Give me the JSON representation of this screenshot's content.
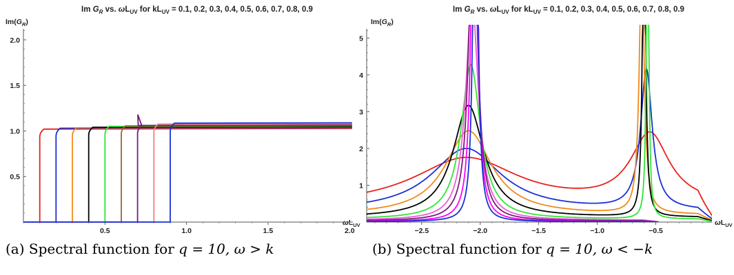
{
  "captions": {
    "a": {
      "prefix": "(a) Spectral function for ",
      "math": "q = 10, ω > k"
    },
    "b": {
      "prefix": "(b) Spectral function for ",
      "math": "q = 10, ω < −k"
    }
  },
  "chart_data": [
    {
      "id": "a",
      "type": "line",
      "title": "Im G_R vs. ωL_UV for kL_UV = 0.1, 0.2, 0.3, 0.4, 0.5, 0.6, 0.7, 0.8, 0.9",
      "title_parts": {
        "lead": "Im ",
        "g": "G",
        "sub": "R",
        "mid": " vs. ",
        "w": "ω",
        "l": "L",
        "uv": "UV",
        "rest": " for kL",
        "uv2": "UV",
        "tail": " = 0.1, 0.2, 0.3, 0.4, 0.5, 0.6, 0.7, 0.8, 0.9"
      },
      "ylabel": "Im(G_R)",
      "ylabel_parts": {
        "lead": "Im(",
        "g": "G",
        "sub": "R",
        "tail": ")"
      },
      "xlabel": "ωL_UV",
      "xlabel_parts": {
        "w": "ω",
        "l": "L",
        "sub": "UV"
      },
      "xlim": [
        0,
        2.02
      ],
      "ylim": [
        0,
        2.12
      ],
      "xticks": [
        0.5,
        1.0,
        1.5,
        2.0
      ],
      "xtick_labels": [
        "0.5",
        "1.0",
        "1.5",
        "2.0"
      ],
      "yticks": [
        0.5,
        1.0,
        1.5,
        2.0
      ],
      "ytick_labels": [
        "0.5",
        "1.0",
        "1.5",
        "2.0"
      ],
      "series": [
        {
          "k": 0.1,
          "color": "#e8211c",
          "plateau": 1.02
        },
        {
          "k": 0.2,
          "color": "#1a2fd6",
          "plateau": 1.03
        },
        {
          "k": 0.3,
          "color": "#f08a1a",
          "plateau": 1.035
        },
        {
          "k": 0.4,
          "color": "#000000",
          "plateau": 1.04
        },
        {
          "k": 0.5,
          "color": "#2ee636",
          "plateau": 1.05
        },
        {
          "k": 0.6,
          "color": "#a0622d",
          "plateau": 1.055
        },
        {
          "k": 0.7,
          "color": "#7a1a7a",
          "plateau": 1.06,
          "spike": 1.18
        },
        {
          "k": 0.8,
          "color": "#f08080",
          "plateau": 1.075
        },
        {
          "k": 0.9,
          "color": "#1a2fd6",
          "plateau": 1.085
        }
      ]
    },
    {
      "id": "b",
      "type": "line",
      "title": "Im G_R vs. ωL_UV for kL_UV = 0.1, 0.2, 0.3, 0.4, 0.5, 0.6, 0.7, 0.8, 0.9",
      "title_parts": {
        "lead": "Im ",
        "g": "G",
        "sub": "R",
        "mid": " vs. ",
        "w": "ω",
        "l": "L",
        "uv": "UV",
        "rest": " for kL",
        "uv2": "UV",
        "tail": " = 0.1, 0.2, 0.3, 0.4, 0.5, 0.6, 0.7, 0.8, 0.9"
      },
      "ylabel": "Im(G_R)",
      "ylabel_parts": {
        "lead": "Im(",
        "g": "G",
        "sub": "R",
        "tail": ")"
      },
      "xlabel": "ωL_UV",
      "xlabel_parts": {
        "w": "ω",
        "l": "L",
        "sub": "UV"
      },
      "xlim": [
        -2.97,
        -0.02
      ],
      "ylim": [
        0,
        5.25
      ],
      "xticks": [
        -2.5,
        -2.0,
        -1.5,
        -1.0,
        -0.5
      ],
      "xtick_labels": [
        "−2.5",
        "−2.0",
        "−1.5",
        "−1.0",
        "−0.5"
      ],
      "yticks": [
        1,
        2,
        3,
        4,
        5
      ],
      "ytick_labels": [
        "1",
        "2",
        "3",
        "4",
        "5"
      ],
      "series": [
        {
          "k": 0.1,
          "color": "#e8211c",
          "p1": [
            -2.12,
            1.32,
            0.55
          ],
          "p2": [
            -0.55,
            1.9,
            0.2
          ],
          "base": 0.68
        },
        {
          "k": 0.2,
          "color": "#1a2fd6",
          "p1": [
            -2.12,
            1.72,
            0.36
          ],
          "p2": [
            -0.58,
            3.8,
            0.06
          ],
          "base": 0.46
        },
        {
          "k": 0.3,
          "color": "#f08a1a",
          "p1": [
            -2.1,
            2.3,
            0.24
          ],
          "p2": [
            -0.62,
            7.0,
            0.025
          ],
          "base": 0.3
        },
        {
          "k": 0.4,
          "color": "#000000",
          "p1": [
            -2.1,
            3.05,
            0.16
          ],
          "p2": [
            -0.6,
            9.5,
            0.015
          ],
          "base": 0.2
        },
        {
          "k": 0.5,
          "color": "#2ee636",
          "p1": [
            -2.08,
            4.2,
            0.1
          ],
          "p2": [
            -0.57,
            12.0,
            0.01
          ],
          "base": 0.12
        },
        {
          "k": 0.6,
          "color": "#f05ad6",
          "p1": [
            -2.07,
            6.0,
            0.065
          ],
          "base": 0.08
        },
        {
          "k": 0.7,
          "color": "#7a1a7a",
          "p1": [
            -2.06,
            8.5,
            0.045
          ],
          "base": 0.05
        },
        {
          "k": 0.8,
          "color": "#ff00ff",
          "p1": [
            -2.05,
            11.0,
            0.03
          ],
          "base": 0.03
        },
        {
          "k": 0.9,
          "color": "#1a2fd6",
          "p1": [
            -2.04,
            14.0,
            0.02
          ],
          "base": 0.02
        }
      ]
    }
  ]
}
